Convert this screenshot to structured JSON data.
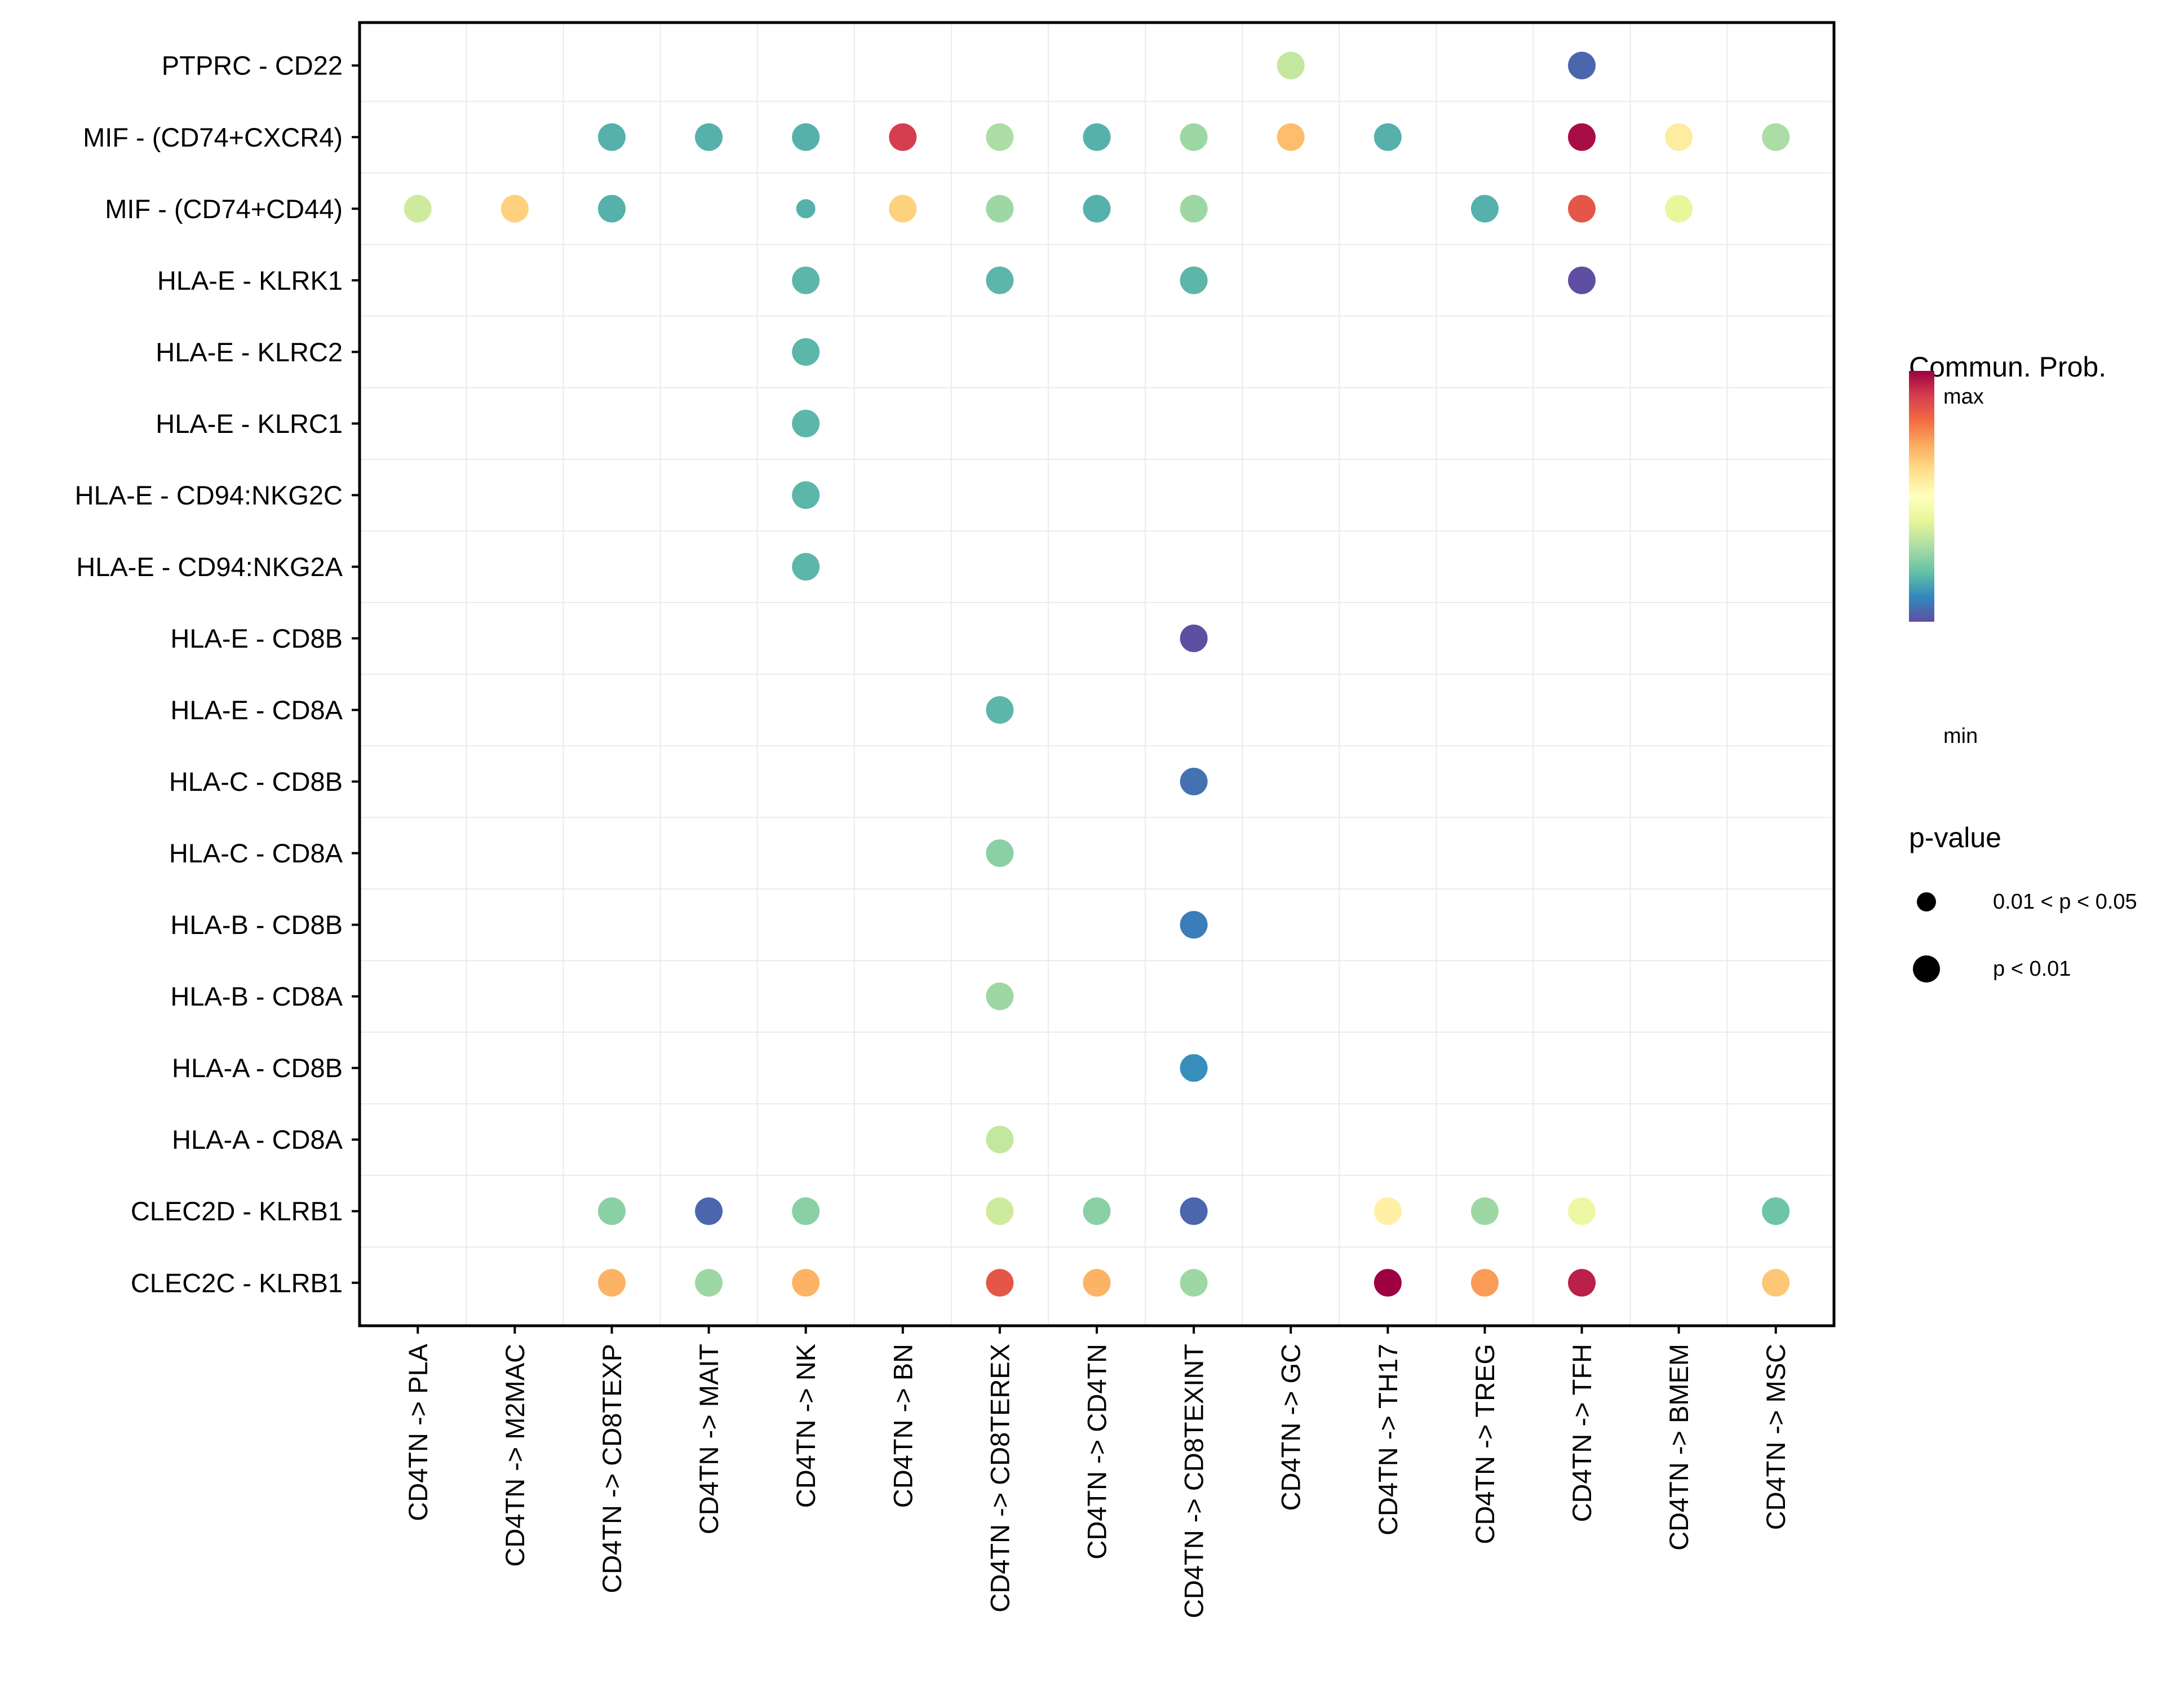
{
  "chart_data": {
    "type": "scatter",
    "subtype": "dot-plot",
    "title": "",
    "xlabel": "",
    "ylabel": "",
    "grid": true,
    "x_categories": [
      "CD4TN -> PLA",
      "CD4TN -> M2MAC",
      "CD4TN -> CD8TEXP",
      "CD4TN -> MAIT",
      "CD4TN -> NK",
      "CD4TN -> BN",
      "CD4TN -> CD8TEREX",
      "CD4TN -> CD4TN",
      "CD4TN -> CD8TEXINT",
      "CD4TN -> GC",
      "CD4TN -> TH17",
      "CD4TN -> TREG",
      "CD4TN -> TFH",
      "CD4TN -> BMEM",
      "CD4TN -> MSC"
    ],
    "y_categories_top_to_bottom": [
      "PTPRC - CD22",
      "MIF - (CD74+CXCR4)",
      "MIF - (CD74+CD44)",
      "HLA-E - KLRK1",
      "HLA-E - KLRC2",
      "HLA-E - KLRC1",
      "HLA-E - CD94:NKG2C",
      "HLA-E - CD94:NKG2A",
      "HLA-E - CD8B",
      "HLA-E - CD8A",
      "HLA-C - CD8B",
      "HLA-C - CD8A",
      "HLA-B - CD8B",
      "HLA-B - CD8A",
      "HLA-A - CD8B",
      "HLA-A - CD8A",
      "CLEC2D - KLRB1",
      "CLEC2C - KLRB1"
    ],
    "color_scale": {
      "title": "Commun. Prob.",
      "low_label": "min",
      "high_label": "max",
      "palette": [
        "#5E4FA2",
        "#3288BD",
        "#66C2A5",
        "#ABDDA4",
        "#E6F598",
        "#FFFFBF",
        "#FEE08B",
        "#FDAE61",
        "#F46D43",
        "#D53E4F",
        "#9E0142"
      ]
    },
    "size_legend": {
      "title": "p-value",
      "entries": [
        {
          "label": "0.01 < p < 0.05",
          "category": "mid"
        },
        {
          "label": "p < 0.01",
          "category": "low"
        }
      ]
    },
    "legend_position": "right",
    "points": [
      {
        "y": "PTPRC - CD22",
        "x": "CD4TN -> GC",
        "prob": 0.34,
        "p": "low"
      },
      {
        "y": "PTPRC - CD22",
        "x": "CD4TN -> TFH",
        "prob": 0.04,
        "p": "low"
      },
      {
        "y": "MIF - (CD74+CXCR4)",
        "x": "CD4TN -> CD8TEXP",
        "prob": 0.17,
        "p": "low"
      },
      {
        "y": "MIF - (CD74+CXCR4)",
        "x": "CD4TN -> MAIT",
        "prob": 0.17,
        "p": "low"
      },
      {
        "y": "MIF - (CD74+CXCR4)",
        "x": "CD4TN -> NK",
        "prob": 0.17,
        "p": "low"
      },
      {
        "y": "MIF - (CD74+CXCR4)",
        "x": "CD4TN -> BN",
        "prob": 0.9,
        "p": "low"
      },
      {
        "y": "MIF - (CD74+CXCR4)",
        "x": "CD4TN -> CD8TEREX",
        "prob": 0.3,
        "p": "low"
      },
      {
        "y": "MIF - (CD74+CXCR4)",
        "x": "CD4TN -> CD4TN",
        "prob": 0.17,
        "p": "low"
      },
      {
        "y": "MIF - (CD74+CXCR4)",
        "x": "CD4TN -> CD8TEXINT",
        "prob": 0.28,
        "p": "low"
      },
      {
        "y": "MIF - (CD74+CXCR4)",
        "x": "CD4TN -> GC",
        "prob": 0.67,
        "p": "low"
      },
      {
        "y": "MIF - (CD74+CXCR4)",
        "x": "CD4TN -> TH17",
        "prob": 0.17,
        "p": "low"
      },
      {
        "y": "MIF - (CD74+CXCR4)",
        "x": "CD4TN -> TFH",
        "prob": 0.98,
        "p": "low"
      },
      {
        "y": "MIF - (CD74+CXCR4)",
        "x": "CD4TN -> BMEM",
        "prob": 0.56,
        "p": "low"
      },
      {
        "y": "MIF - (CD74+CXCR4)",
        "x": "CD4TN -> MSC",
        "prob": 0.3,
        "p": "low"
      },
      {
        "y": "MIF - (CD74+CD44)",
        "x": "CD4TN -> PLA",
        "prob": 0.36,
        "p": "low"
      },
      {
        "y": "MIF - (CD74+CD44)",
        "x": "CD4TN -> M2MAC",
        "prob": 0.63,
        "p": "low"
      },
      {
        "y": "MIF - (CD74+CD44)",
        "x": "CD4TN -> CD8TEXP",
        "prob": 0.17,
        "p": "low"
      },
      {
        "y": "MIF - (CD74+CD44)",
        "x": "CD4TN -> NK",
        "prob": 0.17,
        "p": "mid"
      },
      {
        "y": "MIF - (CD74+CD44)",
        "x": "CD4TN -> BN",
        "prob": 0.63,
        "p": "low"
      },
      {
        "y": "MIF - (CD74+CD44)",
        "x": "CD4TN -> CD8TEREX",
        "prob": 0.28,
        "p": "low"
      },
      {
        "y": "MIF - (CD74+CD44)",
        "x": "CD4TN -> CD4TN",
        "prob": 0.17,
        "p": "low"
      },
      {
        "y": "MIF - (CD74+CD44)",
        "x": "CD4TN -> CD8TEXINT",
        "prob": 0.28,
        "p": "low"
      },
      {
        "y": "MIF - (CD74+CD44)",
        "x": "CD4TN -> TREG",
        "prob": 0.17,
        "p": "low"
      },
      {
        "y": "MIF - (CD74+CD44)",
        "x": "CD4TN -> TFH",
        "prob": 0.85,
        "p": "low"
      },
      {
        "y": "MIF - (CD74+CD44)",
        "x": "CD4TN -> BMEM",
        "prob": 0.41,
        "p": "low"
      },
      {
        "y": "HLA-E - KLRK1",
        "x": "CD4TN -> NK",
        "prob": 0.18,
        "p": "low"
      },
      {
        "y": "HLA-E - KLRK1",
        "x": "CD4TN -> CD8TEREX",
        "prob": 0.18,
        "p": "low"
      },
      {
        "y": "HLA-E - KLRK1",
        "x": "CD4TN -> CD8TEXINT",
        "prob": 0.18,
        "p": "low"
      },
      {
        "y": "HLA-E - KLRK1",
        "x": "CD4TN -> TFH",
        "prob": 0.0,
        "p": "low"
      },
      {
        "y": "HLA-E - KLRC2",
        "x": "CD4TN -> NK",
        "prob": 0.18,
        "p": "low"
      },
      {
        "y": "HLA-E - KLRC1",
        "x": "CD4TN -> NK",
        "prob": 0.18,
        "p": "low"
      },
      {
        "y": "HLA-E - CD94:NKG2C",
        "x": "CD4TN -> NK",
        "prob": 0.18,
        "p": "low"
      },
      {
        "y": "HLA-E - CD94:NKG2A",
        "x": "CD4TN -> NK",
        "prob": 0.18,
        "p": "low"
      },
      {
        "y": "HLA-E - CD8B",
        "x": "CD4TN -> CD8TEXINT",
        "prob": 0.0,
        "p": "low"
      },
      {
        "y": "HLA-E - CD8A",
        "x": "CD4TN -> CD8TEREX",
        "prob": 0.18,
        "p": "low"
      },
      {
        "y": "HLA-C - CD8B",
        "x": "CD4TN -> CD8TEXINT",
        "prob": 0.06,
        "p": "low"
      },
      {
        "y": "HLA-C - CD8A",
        "x": "CD4TN -> CD8TEREX",
        "prob": 0.25,
        "p": "low"
      },
      {
        "y": "HLA-B - CD8B",
        "x": "CD4TN -> CD8TEXINT",
        "prob": 0.08,
        "p": "low"
      },
      {
        "y": "HLA-B - CD8A",
        "x": "CD4TN -> CD8TEREX",
        "prob": 0.28,
        "p": "low"
      },
      {
        "y": "HLA-A - CD8B",
        "x": "CD4TN -> CD8TEXINT",
        "prob": 0.11,
        "p": "low"
      },
      {
        "y": "HLA-A - CD8A",
        "x": "CD4TN -> CD8TEREX",
        "prob": 0.34,
        "p": "low"
      },
      {
        "y": "CLEC2D - KLRB1",
        "x": "CD4TN -> CD8TEXP",
        "prob": 0.25,
        "p": "low"
      },
      {
        "y": "CLEC2D - KLRB1",
        "x": "CD4TN -> MAIT",
        "prob": 0.04,
        "p": "low"
      },
      {
        "y": "CLEC2D - KLRB1",
        "x": "CD4TN -> NK",
        "prob": 0.25,
        "p": "low"
      },
      {
        "y": "CLEC2D - KLRB1",
        "x": "CD4TN -> CD8TEREX",
        "prob": 0.36,
        "p": "low"
      },
      {
        "y": "CLEC2D - KLRB1",
        "x": "CD4TN -> CD4TN",
        "prob": 0.25,
        "p": "low"
      },
      {
        "y": "CLEC2D - KLRB1",
        "x": "CD4TN -> CD8TEXINT",
        "prob": 0.04,
        "p": "low"
      },
      {
        "y": "CLEC2D - KLRB1",
        "x": "CD4TN -> TH17",
        "prob": 0.55,
        "p": "low"
      },
      {
        "y": "CLEC2D - KLRB1",
        "x": "CD4TN -> TREG",
        "prob": 0.28,
        "p": "low"
      },
      {
        "y": "CLEC2D - KLRB1",
        "x": "CD4TN -> TFH",
        "prob": 0.43,
        "p": "low"
      },
      {
        "y": "CLEC2D - KLRB1",
        "x": "CD4TN -> MSC",
        "prob": 0.21,
        "p": "low"
      },
      {
        "y": "CLEC2C - KLRB1",
        "x": "CD4TN -> CD8TEXP",
        "prob": 0.69,
        "p": "low"
      },
      {
        "y": "CLEC2C - KLRB1",
        "x": "CD4TN -> MAIT",
        "prob": 0.28,
        "p": "low"
      },
      {
        "y": "CLEC2C - KLRB1",
        "x": "CD4TN -> NK",
        "prob": 0.69,
        "p": "low"
      },
      {
        "y": "CLEC2C - KLRB1",
        "x": "CD4TN -> CD8TEREX",
        "prob": 0.85,
        "p": "low"
      },
      {
        "y": "CLEC2C - KLRB1",
        "x": "CD4TN -> CD4TN",
        "prob": 0.69,
        "p": "low"
      },
      {
        "y": "CLEC2C - KLRB1",
        "x": "CD4TN -> CD8TEXINT",
        "prob": 0.28,
        "p": "low"
      },
      {
        "y": "CLEC2C - KLRB1",
        "x": "CD4TN -> TH17",
        "prob": 1.0,
        "p": "low"
      },
      {
        "y": "CLEC2C - KLRB1",
        "x": "CD4TN -> TREG",
        "prob": 0.73,
        "p": "low"
      },
      {
        "y": "CLEC2C - KLRB1",
        "x": "CD4TN -> TFH",
        "prob": 0.95,
        "p": "low"
      },
      {
        "y": "CLEC2C - KLRB1",
        "x": "CD4TN -> MSC",
        "prob": 0.65,
        "p": "low"
      }
    ]
  }
}
